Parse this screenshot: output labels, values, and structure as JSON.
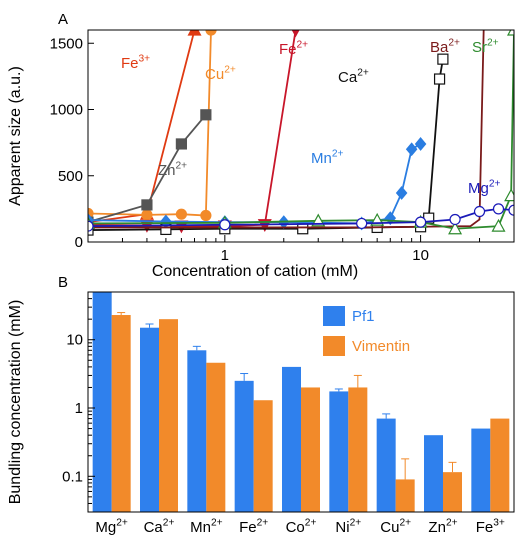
{
  "chart_data": [
    {
      "panel_label": "A",
      "type": "line",
      "xlabel": "Concentration of cation (mM)",
      "ylabel": "Apparent size (a.u.)",
      "xscale": "log",
      "xlim": [
        0.2,
        30
      ],
      "ylim": [
        0,
        1600
      ],
      "x_tick_labels": [
        {
          "value": 1,
          "label": "1"
        },
        {
          "value": 10,
          "label": "10"
        }
      ],
      "y_tick_labels": [
        {
          "value": 0,
          "label": "0"
        },
        {
          "value": 500,
          "label": "500"
        },
        {
          "value": 1000,
          "label": "1000"
        },
        {
          "value": 1500,
          "label": "1500"
        }
      ],
      "grid": false,
      "legend": "none",
      "series": [
        {
          "ion": "Fe",
          "charge": "3+",
          "color": "#e03a12",
          "marker": "triangle-up",
          "filled": true,
          "points": [
            [
              0.2,
              150
            ],
            [
              0.4,
              210
            ],
            [
              0.7,
              1600
            ]
          ]
        },
        {
          "ion": "Cu",
          "charge": "2+",
          "color": "#f28a2a",
          "marker": "circle",
          "filled": true,
          "points": [
            [
              0.2,
              215
            ],
            [
              0.4,
              205
            ],
            [
              0.6,
              210
            ],
            [
              0.8,
              200
            ],
            [
              0.85,
              1600
            ]
          ]
        },
        {
          "ion": "Fe",
          "charge": "2+",
          "color": "#c8162a",
          "marker": "triangle-down",
          "filled": true,
          "points": [
            [
              0.2,
              130
            ],
            [
              0.4,
              125
            ],
            [
              0.6,
              120
            ],
            [
              1.0,
              120
            ],
            [
              1.6,
              130
            ],
            [
              2.3,
              1600
            ]
          ]
        },
        {
          "ion": "Zn",
          "charge": "2+",
          "color": "#555555",
          "marker": "square",
          "filled": true,
          "points": [
            [
              0.2,
              150
            ],
            [
              0.4,
              280
            ],
            [
              0.6,
              740
            ],
            [
              0.8,
              960
            ]
          ]
        },
        {
          "ion": "Ca",
          "charge": "2+",
          "color": "#111111",
          "marker": "square",
          "filled": false,
          "points": [
            [
              0.2,
              90
            ],
            [
              0.5,
              95
            ],
            [
              1.0,
              100
            ],
            [
              2.5,
              100
            ],
            [
              6.0,
              110
            ],
            [
              10,
              115
            ],
            [
              11,
              180
            ],
            [
              12.5,
              1230
            ],
            [
              13,
              1380
            ]
          ]
        },
        {
          "ion": "Mn",
          "charge": "2+",
          "color": "#2a7de1",
          "marker": "diamond",
          "filled": true,
          "points": [
            [
              0.2,
              165
            ],
            [
              0.5,
              155
            ],
            [
              1.0,
              150
            ],
            [
              2.0,
              150
            ],
            [
              5.0,
              140
            ],
            [
              7.0,
              180
            ],
            [
              8.0,
              370
            ],
            [
              9.0,
              700
            ],
            [
              10,
              740
            ]
          ]
        },
        {
          "ion": "Ba",
          "charge": "2+",
          "color": "#7a1a1a",
          "marker": "none",
          "filled": false,
          "points": [
            [
              0.2,
              110
            ],
            [
              1.0,
              110
            ],
            [
              5.0,
              110
            ],
            [
              10,
              115
            ],
            [
              18,
              120
            ],
            [
              20,
              170
            ],
            [
              21,
              1600
            ]
          ]
        },
        {
          "ion": "Sr",
          "charge": "2+",
          "color": "#2e8b2e",
          "marker": "triangle-up",
          "filled": false,
          "points": [
            [
              0.2,
              140
            ],
            [
              1.0,
              145
            ],
            [
              3.0,
              160
            ],
            [
              6.0,
              165
            ],
            [
              10,
              150
            ],
            [
              15,
              100
            ],
            [
              25,
              120
            ],
            [
              29,
              350
            ],
            [
              30,
              1600
            ]
          ]
        },
        {
          "ion": "Mg",
          "charge": "2+",
          "color": "#1a1ab8",
          "marker": "circle",
          "filled": false,
          "points": [
            [
              0.2,
              120
            ],
            [
              1.0,
              130
            ],
            [
              5.0,
              140
            ],
            [
              10,
              150
            ],
            [
              15,
              170
            ],
            [
              20,
              230
            ],
            [
              25,
              250
            ],
            [
              30,
              240
            ]
          ]
        }
      ]
    },
    {
      "panel_label": "B",
      "type": "bar",
      "ylabel": "Bundling concentration (mM)",
      "yscale": "log",
      "ylim": [
        0.03,
        50
      ],
      "y_tick_labels": [
        {
          "value": 0.1,
          "label": "0.1"
        },
        {
          "value": 1,
          "label": "1"
        },
        {
          "value": 10,
          "label": "10"
        }
      ],
      "grid": false,
      "legend": "top-right",
      "categories": [
        {
          "ion": "Mg",
          "charge": "2+"
        },
        {
          "ion": "Ca",
          "charge": "2+"
        },
        {
          "ion": "Mn",
          "charge": "2+"
        },
        {
          "ion": "Fe",
          "charge": "2+"
        },
        {
          "ion": "Co",
          "charge": "2+"
        },
        {
          "ion": "Ni",
          "charge": "2+"
        },
        {
          "ion": "Cu",
          "charge": "2+"
        },
        {
          "ion": "Zn",
          "charge": "2+"
        },
        {
          "ion": "Fe",
          "charge": "3+"
        }
      ],
      "series": [
        {
          "name": "Pf1",
          "color": "#2f80ed",
          "values": [
            50,
            15,
            7,
            2.5,
            4,
            1.75,
            0.7,
            0.4,
            0.5
          ],
          "errors": [
            null,
            17,
            8,
            3.2,
            null,
            1.9,
            0.82,
            null,
            null
          ]
        },
        {
          "name": "Vimentin",
          "color": "#f28a2a",
          "values": [
            23,
            20,
            4.6,
            1.3,
            2.0,
            2.0,
            0.09,
            0.115,
            0.7
          ],
          "errors": [
            25,
            null,
            null,
            null,
            null,
            3.0,
            0.18,
            0.16,
            null
          ]
        }
      ]
    }
  ]
}
